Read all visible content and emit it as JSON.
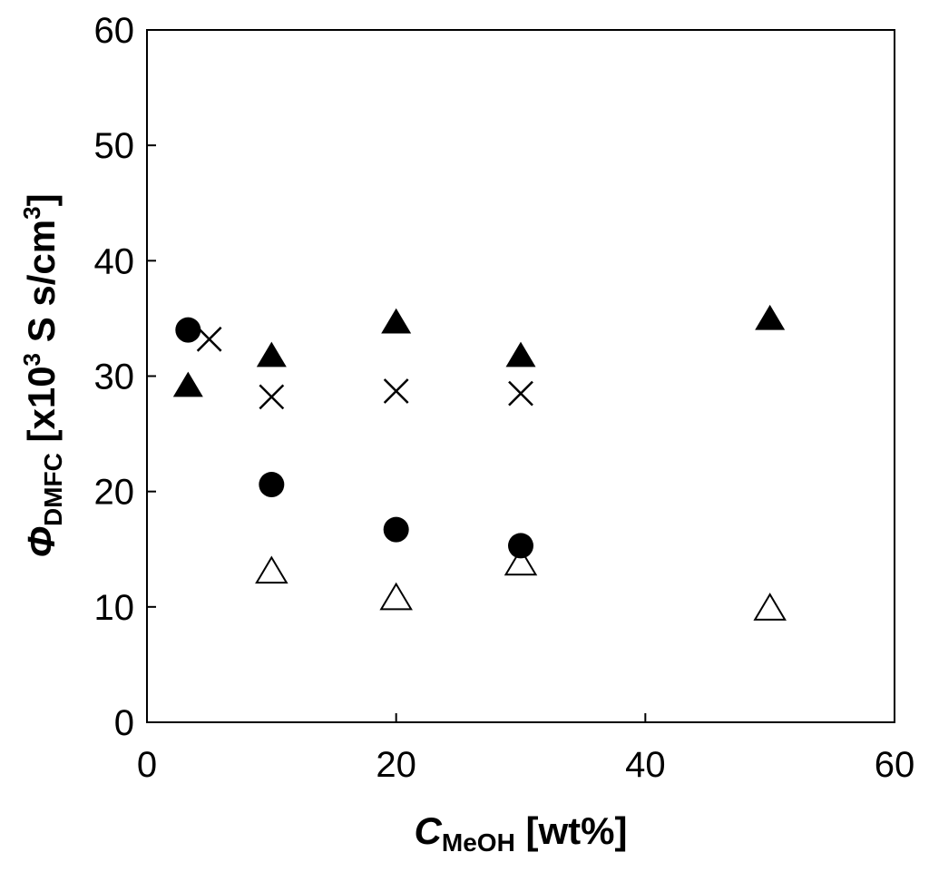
{
  "chart_data": {
    "type": "scatter",
    "title": "",
    "xlabel": {
      "symbol": "C",
      "subscript": "MeOH",
      "unit": " [wt%]"
    },
    "ylabel": {
      "symbol": "Φ",
      "subscript": "DMFC",
      "pre_sup": " [x10",
      "sup": "3",
      "mid": " S s/cm",
      "sup2": "3",
      "post": "]"
    },
    "xlim": [
      0,
      60
    ],
    "ylim": [
      0,
      60
    ],
    "xticks": [
      0,
      20,
      40,
      60
    ],
    "yticks": [
      0,
      10,
      20,
      30,
      40,
      50,
      60
    ],
    "grid": false,
    "legend": "none",
    "series": [
      {
        "marker": "circle-filled",
        "points": [
          [
            3.3,
            34.0
          ],
          [
            10,
            20.6
          ],
          [
            20,
            16.7
          ],
          [
            30,
            15.3
          ]
        ]
      },
      {
        "marker": "triangle-filled",
        "points": [
          [
            3.3,
            29.2
          ],
          [
            10,
            31.8
          ],
          [
            20,
            34.7
          ],
          [
            30,
            31.8
          ],
          [
            50,
            35.0
          ]
        ]
      },
      {
        "marker": "cross",
        "points": [
          [
            5,
            33.2
          ],
          [
            10,
            28.2
          ],
          [
            20,
            28.7
          ],
          [
            30,
            28.5
          ]
        ]
      },
      {
        "marker": "triangle-open",
        "points": [
          [
            10,
            13.1
          ],
          [
            20,
            10.8
          ],
          [
            30,
            13.8
          ],
          [
            50,
            9.9
          ]
        ]
      }
    ]
  }
}
